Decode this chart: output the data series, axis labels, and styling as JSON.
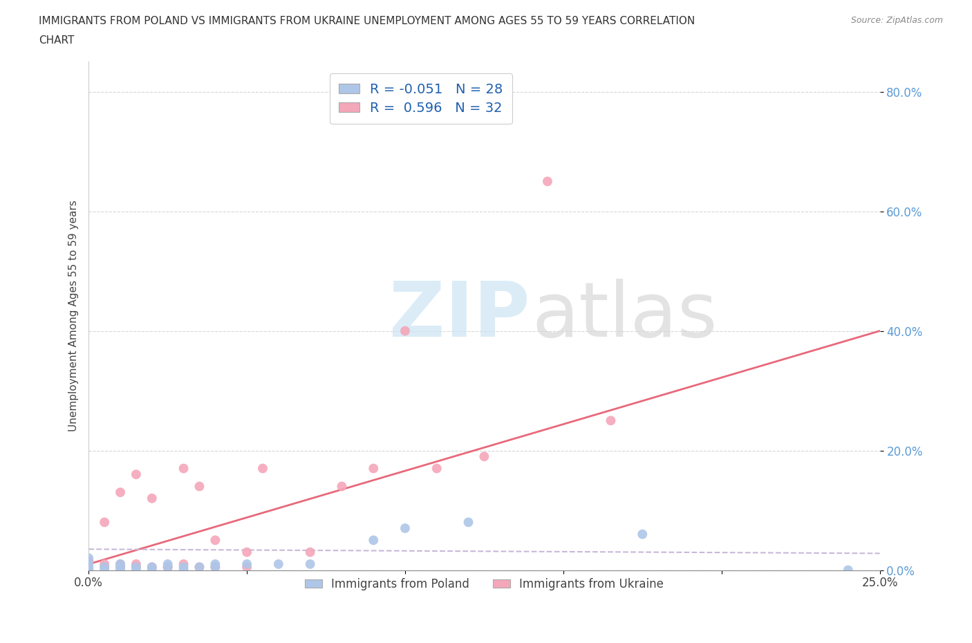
{
  "title_line1": "IMMIGRANTS FROM POLAND VS IMMIGRANTS FROM UKRAINE UNEMPLOYMENT AMONG AGES 55 TO 59 YEARS CORRELATION",
  "title_line2": "CHART",
  "source": "Source: ZipAtlas.com",
  "ylabel": "Unemployment Among Ages 55 to 59 years",
  "xlim": [
    0.0,
    0.25
  ],
  "ylim": [
    0.0,
    0.85
  ],
  "xticks": [
    0.0,
    0.05,
    0.1,
    0.15,
    0.2,
    0.25
  ],
  "yticks": [
    0.0,
    0.2,
    0.4,
    0.6,
    0.8
  ],
  "ytick_labels": [
    "0.0%",
    "20.0%",
    "40.0%",
    "60.0%",
    "80.0%"
  ],
  "xtick_labels": [
    "0.0%",
    "",
    "",
    "",
    "",
    "25.0%"
  ],
  "poland_R": -0.051,
  "poland_N": 28,
  "ukraine_R": 0.596,
  "ukraine_N": 32,
  "poland_color": "#aec6e8",
  "ukraine_color": "#f4a7b9",
  "poland_line_color": "#c8b8d8",
  "ukraine_line_color": "#e8687a",
  "background_color": "#ffffff",
  "grid_color": "#cccccc",
  "poland_scatter_x": [
    0.0,
    0.0,
    0.0,
    0.0,
    0.005,
    0.005,
    0.01,
    0.01,
    0.01,
    0.015,
    0.015,
    0.02,
    0.02,
    0.025,
    0.025,
    0.03,
    0.03,
    0.035,
    0.04,
    0.04,
    0.05,
    0.06,
    0.07,
    0.09,
    0.1,
    0.12,
    0.175,
    0.24
  ],
  "poland_scatter_y": [
    0.0,
    0.005,
    0.01,
    0.02,
    0.0,
    0.005,
    0.0,
    0.005,
    0.01,
    0.0,
    0.005,
    0.0,
    0.005,
    0.005,
    0.01,
    0.0,
    0.005,
    0.005,
    0.005,
    0.01,
    0.01,
    0.01,
    0.01,
    0.05,
    0.07,
    0.08,
    0.06,
    0.0
  ],
  "ukraine_scatter_x": [
    0.0,
    0.0,
    0.005,
    0.005,
    0.005,
    0.01,
    0.01,
    0.01,
    0.015,
    0.015,
    0.015,
    0.02,
    0.02,
    0.025,
    0.025,
    0.03,
    0.03,
    0.035,
    0.035,
    0.04,
    0.04,
    0.05,
    0.05,
    0.055,
    0.07,
    0.08,
    0.09,
    0.1,
    0.11,
    0.125,
    0.145,
    0.165
  ],
  "ukraine_scatter_y": [
    0.0,
    0.015,
    0.005,
    0.01,
    0.08,
    0.005,
    0.01,
    0.13,
    0.005,
    0.01,
    0.16,
    0.005,
    0.12,
    0.005,
    0.005,
    0.01,
    0.17,
    0.005,
    0.14,
    0.005,
    0.05,
    0.005,
    0.03,
    0.17,
    0.03,
    0.14,
    0.17,
    0.4,
    0.17,
    0.19,
    0.65,
    0.25
  ],
  "ukraine_trendline_x": [
    0.0,
    0.25
  ],
  "ukraine_trendline_y": [
    0.01,
    0.4
  ],
  "poland_trendline_x": [
    0.0,
    0.25
  ],
  "poland_trendline_y": [
    0.035,
    0.028
  ]
}
